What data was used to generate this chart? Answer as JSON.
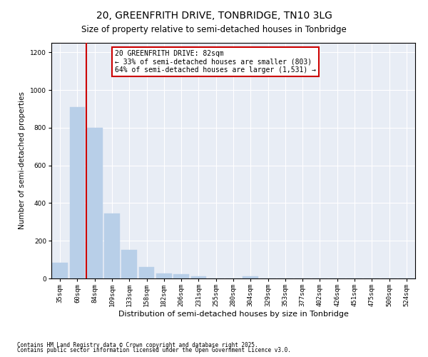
{
  "title": "20, GREENFRITH DRIVE, TONBRIDGE, TN10 3LG",
  "subtitle": "Size of property relative to semi-detached houses in Tonbridge",
  "xlabel": "Distribution of semi-detached houses by size in Tonbridge",
  "ylabel": "Number of semi-detached properties",
  "categories": [
    "35sqm",
    "60sqm",
    "84sqm",
    "109sqm",
    "133sqm",
    "158sqm",
    "182sqm",
    "206sqm",
    "231sqm",
    "255sqm",
    "280sqm",
    "304sqm",
    "329sqm",
    "353sqm",
    "377sqm",
    "402sqm",
    "426sqm",
    "451sqm",
    "475sqm",
    "500sqm",
    "524sqm"
  ],
  "values": [
    85,
    910,
    800,
    345,
    150,
    62,
    28,
    24,
    12,
    0,
    0,
    12,
    0,
    0,
    0,
    0,
    0,
    0,
    0,
    0,
    0
  ],
  "bar_color": "#b8cfe8",
  "bar_edge_color": "#b8cfe8",
  "vline_x_index": 1.5,
  "vline_color": "#cc0000",
  "annotation_text": "20 GREENFRITH DRIVE: 82sqm\n← 33% of semi-detached houses are smaller (803)\n64% of semi-detached houses are larger (1,531) →",
  "annotation_box_color": "#cc0000",
  "annotation_facecolor": "white",
  "ylim": [
    0,
    1250
  ],
  "yticks": [
    0,
    200,
    400,
    600,
    800,
    1000,
    1200
  ],
  "title_fontsize": 10,
  "subtitle_fontsize": 8.5,
  "xlabel_fontsize": 8,
  "ylabel_fontsize": 7.5,
  "tick_fontsize": 6.5,
  "annotation_fontsize": 7,
  "footer_line1": "Contains HM Land Registry data © Crown copyright and database right 2025.",
  "footer_line2": "Contains public sector information licensed under the Open Government Licence v3.0.",
  "fig_bg_color": "#ffffff",
  "plot_bg_color": "#e8edf5"
}
